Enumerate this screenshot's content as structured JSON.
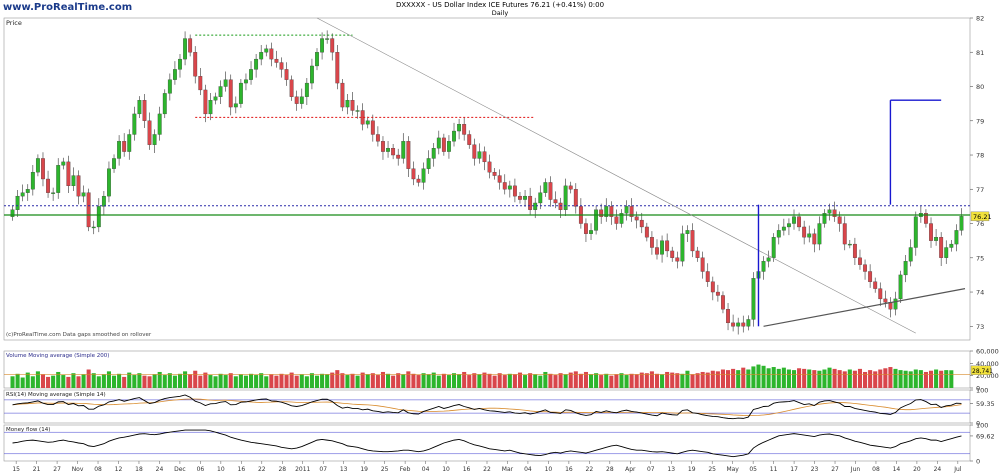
{
  "header": {
    "brand": "www.ProRealTime.com",
    "title": "DXXXXX - US Dollar Index ICE Futures   76.21 (+0.41%)   0:00",
    "subtitle": "Daily"
  },
  "colors": {
    "up": "#2db52d",
    "down": "#d9464b",
    "support": "#168a16",
    "resistance_dotted": "#2a2aa8",
    "red_dotted": "#e01010",
    "green_dotted": "#169a16",
    "measure": "#1818d0",
    "trend": "#888888",
    "rsi_line": "#000000",
    "rsi_ma": "#d88a2a"
  },
  "chart_data": [
    {
      "type": "candlestick",
      "title": "Price",
      "timeframe": "Daily",
      "ylim": [
        72.6,
        82.0
      ],
      "yticks": [
        "82",
        "81",
        "80",
        "79",
        "78",
        "77",
        "76",
        "75",
        "74",
        "73"
      ],
      "last_value": "76.21",
      "x_ticks": [
        "15",
        "21",
        "27",
        "Nov",
        "08",
        "12",
        "18",
        "24",
        "Dec",
        "06",
        "10",
        "16",
        "22",
        "28",
        "2011",
        "07",
        "13",
        "19",
        "25",
        "Feb",
        "04",
        "10",
        "16",
        "22",
        "Mar",
        "04",
        "10",
        "16",
        "22",
        "28",
        "Apr",
        "07",
        "13",
        "19",
        "25",
        "May",
        "05",
        "11",
        "17",
        "23",
        "27",
        "Jun",
        "08",
        "14",
        "20",
        "24",
        "Jul"
      ],
      "footnote": "(c)ProRealTime.com  Data gaps smoothed on rollover",
      "closes": [
        76.4,
        76.8,
        76.9,
        77.0,
        77.5,
        77.9,
        77.3,
        76.9,
        76.9,
        77.7,
        77.8,
        77.1,
        77.4,
        76.8,
        76.9,
        75.9,
        75.9,
        76.5,
        76.8,
        77.6,
        77.9,
        78.4,
        78.1,
        78.6,
        79.2,
        79.6,
        79.0,
        78.3,
        78.6,
        79.2,
        79.8,
        80.2,
        80.5,
        80.8,
        81.4,
        81.0,
        80.3,
        79.9,
        79.2,
        79.6,
        79.7,
        80.0,
        80.2,
        79.4,
        79.5,
        80.1,
        80.2,
        80.5,
        80.8,
        81.0,
        81.1,
        80.8,
        80.7,
        80.5,
        80.2,
        79.7,
        79.5,
        79.7,
        80.1,
        80.6,
        81.0,
        81.4,
        81.4,
        81.0,
        80.1,
        79.4,
        79.6,
        79.3,
        79.3,
        78.9,
        79.0,
        78.6,
        78.4,
        78.1,
        78.2,
        78.0,
        77.9,
        78.4,
        77.6,
        77.3,
        77.2,
        77.6,
        77.9,
        78.2,
        78.5,
        78.1,
        78.4,
        78.7,
        78.9,
        78.6,
        78.3,
        77.9,
        78.1,
        77.8,
        77.5,
        77.4,
        77.2,
        77.0,
        77.1,
        76.8,
        76.7,
        76.8,
        76.4,
        76.6,
        76.9,
        77.2,
        76.7,
        76.6,
        76.4,
        77.1,
        77.0,
        76.5,
        76.0,
        75.7,
        75.8,
        76.4,
        76.2,
        76.5,
        76.2,
        76.0,
        76.3,
        76.5,
        76.2,
        76.1,
        75.9,
        75.6,
        75.3,
        75.1,
        75.5,
        75.2,
        75.0,
        74.9,
        75.7,
        75.8,
        75.2,
        75.0,
        74.6,
        74.3,
        74.0,
        73.9,
        73.5,
        73.1,
        73.0,
        73.1,
        73.0,
        73.2,
        74.4,
        74.6,
        74.9,
        75.0,
        75.6,
        75.8,
        75.9,
        76.0,
        76.2,
        75.9,
        75.6,
        75.7,
        75.4,
        76.0,
        76.3,
        76.4,
        76.2,
        76.0,
        75.4,
        75.4,
        75.0,
        74.8,
        74.6,
        74.3,
        74.1,
        73.8,
        73.7,
        73.5,
        73.8,
        74.5,
        74.9,
        75.3,
        76.2,
        76.3,
        76.0,
        75.5,
        75.6,
        75.0,
        75.3,
        75.4,
        75.8,
        76.21
      ]
    },
    {
      "type": "bar",
      "title": "Volume  Moving average (Simple 200)",
      "ylim": [
        0,
        60000
      ],
      "yticks": [
        "60,000",
        "40,000",
        "20,000",
        "0"
      ],
      "last_value": "28,741",
      "ma_value": 22000,
      "values": [
        19000,
        23000,
        17000,
        25000,
        19000,
        27000,
        22000,
        18000,
        20000,
        26000,
        21000,
        18000,
        24000,
        19000,
        22000,
        30000,
        24000,
        19000,
        22000,
        27000,
        20000,
        23000,
        18000,
        25000,
        21000,
        24000,
        20000,
        19000,
        22000,
        26000,
        21000,
        24000,
        20000,
        23000,
        27000,
        22000,
        28000,
        20000,
        25000,
        21000,
        19000,
        23000,
        21000,
        24000,
        19000,
        22000,
        20000,
        23000,
        21000,
        24000,
        19000,
        22000,
        20000,
        23000,
        21000,
        25000,
        20000,
        22000,
        19000,
        24000,
        20000,
        23000,
        22000,
        25000,
        29000,
        24000,
        21000,
        23000,
        20000,
        25000,
        22000,
        24000,
        21000,
        26000,
        23000,
        20000,
        24000,
        22000,
        27000,
        23000,
        21000,
        24000,
        22000,
        25000,
        20000,
        23000,
        21000,
        24000,
        22000,
        26000,
        21000,
        24000,
        22000,
        25000,
        23000,
        20000,
        24000,
        21000,
        23000,
        22000,
        25000,
        21000,
        24000,
        22000,
        20000,
        26000,
        23000,
        21000,
        24000,
        22000,
        25000,
        27000,
        23000,
        26000,
        22000,
        24000,
        21000,
        23000,
        20000,
        22000,
        24000,
        21000,
        23000,
        22000,
        25000,
        24000,
        27000,
        23000,
        22000,
        26000,
        25000,
        24000,
        23000,
        28000,
        22000,
        24000,
        26000,
        25000,
        28000,
        27000,
        30000,
        29000,
        31000,
        29000,
        33000,
        30000,
        35000,
        38000,
        36000,
        32000,
        34000,
        31000,
        33000,
        30000,
        29000,
        32000,
        31000,
        30000,
        29000,
        28000,
        30000,
        33000,
        31000,
        29000,
        27000,
        30000,
        28000,
        31000,
        26000,
        29000,
        27000,
        30000,
        32000,
        34000,
        31000,
        29000,
        28000,
        27000,
        30000,
        29000,
        26000,
        28000,
        30000,
        28000,
        29000,
        28741
      ]
    },
    {
      "type": "line",
      "title": "RSI(14)  Moving average (Simple 14)",
      "ylim": [
        0,
        100
      ],
      "yticks": [
        "100",
        "59.35",
        "0"
      ],
      "last_value": "59.35",
      "values": [
        55,
        58,
        60,
        61,
        64,
        67,
        60,
        56,
        56,
        64,
        65,
        56,
        59,
        52,
        53,
        42,
        42,
        51,
        55,
        64,
        67,
        71,
        66,
        70,
        74,
        77,
        68,
        59,
        62,
        69,
        74,
        77,
        79,
        81,
        85,
        78,
        66,
        61,
        53,
        58,
        59,
        63,
        65,
        55,
        56,
        63,
        64,
        67,
        70,
        72,
        73,
        67,
        66,
        63,
        58,
        52,
        50,
        53,
        58,
        64,
        68,
        72,
        72,
        65,
        53,
        45,
        48,
        44,
        44,
        40,
        42,
        37,
        35,
        32,
        34,
        32,
        31,
        40,
        31,
        28,
        27,
        35,
        40,
        45,
        50,
        44,
        48,
        53,
        56,
        50,
        46,
        41,
        44,
        40,
        37,
        36,
        34,
        32,
        34,
        30,
        29,
        31,
        27,
        30,
        35,
        40,
        32,
        31,
        29,
        40,
        38,
        31,
        26,
        23,
        25,
        35,
        32,
        37,
        33,
        31,
        36,
        39,
        35,
        33,
        30,
        27,
        24,
        22,
        30,
        27,
        25,
        24,
        38,
        40,
        31,
        29,
        25,
        22,
        20,
        19,
        16,
        14,
        13,
        15,
        14,
        18,
        41,
        45,
        50,
        51,
        60,
        63,
        64,
        65,
        68,
        62,
        56,
        58,
        53,
        63,
        67,
        68,
        64,
        60,
        50,
        50,
        44,
        41,
        38,
        35,
        33,
        29,
        28,
        26,
        32,
        46,
        53,
        59,
        70,
        71,
        65,
        56,
        57,
        47,
        52,
        54,
        60,
        59.35
      ]
    },
    {
      "type": "line",
      "title": "Money flow (14)",
      "ylim": [
        0,
        100
      ],
      "yticks": [
        "100",
        "69.62",
        "0"
      ],
      "last_value": "69.62",
      "values": [
        50,
        52,
        55,
        57,
        58,
        56,
        54,
        52,
        53,
        56,
        58,
        55,
        53,
        50,
        48,
        42,
        40,
        44,
        48,
        55,
        60,
        64,
        66,
        69,
        72,
        75,
        76,
        74,
        73,
        75,
        78,
        80,
        82,
        84,
        86,
        86,
        86,
        86,
        86,
        84,
        80,
        76,
        72,
        66,
        62,
        58,
        55,
        52,
        50,
        48,
        46,
        44,
        42,
        38,
        36,
        34,
        36,
        40,
        46,
        52,
        58,
        60,
        58,
        56,
        52,
        48,
        42,
        40,
        38,
        34,
        30,
        28,
        27,
        26,
        26,
        27,
        28,
        30,
        30,
        28,
        26,
        28,
        32,
        38,
        44,
        50,
        54,
        58,
        60,
        56,
        50,
        45,
        42,
        38,
        34,
        32,
        30,
        28,
        30,
        26,
        22,
        20,
        18,
        16,
        15,
        18,
        22,
        24,
        22,
        26,
        28,
        26,
        24,
        22,
        26,
        30,
        34,
        38,
        42,
        44,
        40,
        36,
        32,
        30,
        30,
        28,
        26,
        25,
        26,
        24,
        22,
        20,
        24,
        28,
        30,
        28,
        26,
        24,
        20,
        18,
        16,
        14,
        12,
        14,
        16,
        20,
        36,
        45,
        52,
        58,
        64,
        70,
        72,
        74,
        76,
        74,
        72,
        70,
        68,
        72,
        74,
        75,
        72,
        70,
        64,
        60,
        55,
        52,
        48,
        44,
        42,
        40,
        38,
        36,
        40,
        48,
        52,
        56,
        62,
        64,
        62,
        58,
        58,
        54,
        58,
        62,
        66,
        69.62
      ]
    }
  ]
}
